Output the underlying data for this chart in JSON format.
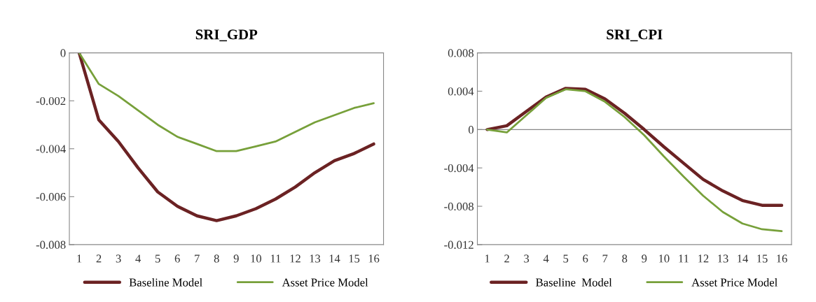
{
  "chart_data": [
    {
      "type": "line",
      "title": "SRI_GDP",
      "categories": [
        "1",
        "2",
        "3",
        "4",
        "5",
        "6",
        "7",
        "8",
        "9",
        "10",
        "11",
        "12",
        "13",
        "14",
        "15",
        "16"
      ],
      "ylim": [
        -0.008,
        0
      ],
      "yticks": [
        {
          "value": -0.008,
          "label": "-0.008"
        },
        {
          "value": -0.006,
          "label": "-0.006"
        },
        {
          "value": -0.004,
          "label": "-0.004"
        },
        {
          "value": -0.002,
          "label": "-0.002"
        },
        {
          "value": 0,
          "label": "0"
        }
      ],
      "legend": "bottom",
      "grid": false,
      "series": [
        {
          "name": "Baseline Model",
          "color": "#6b2223",
          "values": [
            0,
            -0.0028,
            -0.0037,
            -0.0048,
            -0.0058,
            -0.0064,
            -0.0068,
            -0.007,
            -0.0068,
            -0.0065,
            -0.0061,
            -0.0056,
            -0.005,
            -0.0045,
            -0.0042,
            -0.0038
          ]
        },
        {
          "name": "Asset Price Model",
          "color": "#77a03a",
          "values": [
            0,
            -0.0013,
            -0.0018,
            -0.0024,
            -0.003,
            -0.0035,
            -0.0038,
            -0.0041,
            -0.0041,
            -0.0039,
            -0.0037,
            -0.0033,
            -0.0029,
            -0.0026,
            -0.0023,
            -0.0021
          ]
        }
      ]
    },
    {
      "type": "line",
      "title": "SRI_CPI",
      "categories": [
        "1",
        "2",
        "3",
        "4",
        "5",
        "6",
        "7",
        "8",
        "9",
        "10",
        "11",
        "12",
        "13",
        "14",
        "15",
        "16"
      ],
      "ylim": [
        -0.012,
        0.008
      ],
      "ref_lines": [
        {
          "axis": "y",
          "value": 0,
          "color": "#888888"
        }
      ],
      "yticks": [
        {
          "value": -0.012,
          "label": "-0.012"
        },
        {
          "value": -0.008,
          "label": "-0.008"
        },
        {
          "value": -0.004,
          "label": "-0.004"
        },
        {
          "value": 0,
          "label": "0"
        },
        {
          "value": 0.004,
          "label": "0.004"
        },
        {
          "value": 0.008,
          "label": "0.008"
        }
      ],
      "legend": "bottom",
      "grid": false,
      "series": [
        {
          "name": "Baseline  Model",
          "color": "#6b2223",
          "values": [
            0,
            0.0004,
            0.0019,
            0.0034,
            0.0043,
            0.0042,
            0.0032,
            0.0017,
            0.0,
            -0.0018,
            -0.0035,
            -0.0052,
            -0.0064,
            -0.0074,
            -0.0079,
            -0.0079
          ]
        },
        {
          "name": "Asset Price Model",
          "color": "#77a03a",
          "values": [
            0,
            -0.0003,
            0.0015,
            0.0033,
            0.0042,
            0.004,
            0.0029,
            0.0013,
            -0.0006,
            -0.0028,
            -0.0049,
            -0.0069,
            -0.0086,
            -0.0098,
            -0.0104,
            -0.0106
          ]
        }
      ]
    }
  ]
}
